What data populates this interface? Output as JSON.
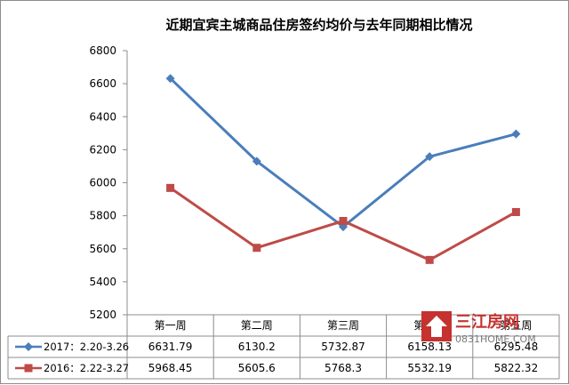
{
  "chart_data": {
    "type": "line",
    "title": "近期宜宾主城商品住房签约均价与去年同期相比情况",
    "categories": [
      "第一周",
      "第二周",
      "第三周",
      "第四周",
      "第五周"
    ],
    "y_ticks": [
      "5200",
      "5400",
      "5600",
      "5800",
      "6000",
      "6200",
      "6400",
      "6600",
      "6800"
    ],
    "ylim": [
      5200,
      6800
    ],
    "grid": false,
    "legend": "table-left",
    "data_table": true,
    "series": [
      {
        "name": "2017：2.20-3.26",
        "color": "#4a7ebb",
        "marker": "diamond",
        "values": [
          6631.79,
          6130.2,
          5732.87,
          6158.13,
          6295.48
        ],
        "labels": [
          "6631.79",
          "6130.2",
          "5732.87",
          "6158.13",
          "6295.48"
        ]
      },
      {
        "name": "2016：2.22-3.27",
        "color": "#be4b48",
        "marker": "square",
        "values": [
          5968.45,
          5605.6,
          5768.3,
          5532.19,
          5822.32
        ],
        "labels": [
          "5968.45",
          "5605.6",
          "5768.3",
          "5532.19",
          "5822.32"
        ]
      }
    ]
  },
  "watermark": {
    "name": "三江房网",
    "domain": "0831HOME.COM",
    "color": "#c5322f"
  }
}
